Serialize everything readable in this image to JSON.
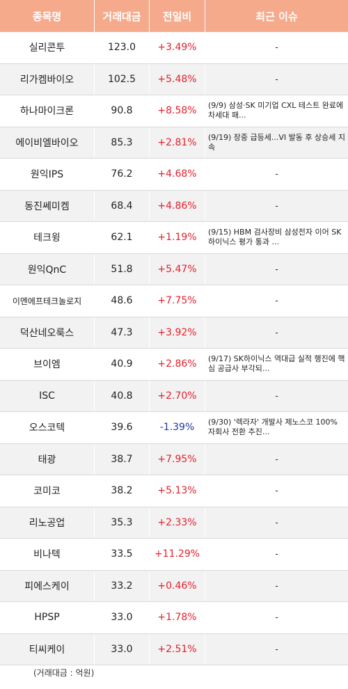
{
  "header": {
    "col_name": "종목명",
    "col_volume": "거래대금",
    "col_change": "전일비",
    "col_issue": "최근 이슈"
  },
  "rows": [
    {
      "name": "실리콘투",
      "volume": "123.0",
      "change": "+3.49%",
      "issue": "-"
    },
    {
      "name": "리가켐바이오",
      "volume": "102.5",
      "change": "+5.48%",
      "issue": "-"
    },
    {
      "name": "하나마이크론",
      "volume": "90.8",
      "change": "+8.58%",
      "issue": "(9/9) 삼성·SK 미기업 CXL 테스트 완료에 차세대 패..."
    },
    {
      "name": "에이비엘바이오",
      "volume": "85.3",
      "change": "+2.81%",
      "issue": "(9/19) 장중 급등세...VI 발동 후 상승세 지속"
    },
    {
      "name": "원익IPS",
      "volume": "76.2",
      "change": "+4.68%",
      "issue": "-"
    },
    {
      "name": "동진쎄미켐",
      "volume": "68.4",
      "change": "+4.86%",
      "issue": "-"
    },
    {
      "name": "테크윙",
      "volume": "62.1",
      "change": "+1.19%",
      "issue": "(9/15) HBM 검사장비 삼성전자 이어 SK하이닉스 평가 통과 ..."
    },
    {
      "name": "원익QnC",
      "volume": "51.8",
      "change": "+5.47%",
      "issue": "-"
    },
    {
      "name": "이엔에프테크놀로지",
      "volume": "48.6",
      "change": "+7.75%",
      "issue": "-"
    },
    {
      "name": "덕산네오룩스",
      "volume": "47.3",
      "change": "+3.92%",
      "issue": "-"
    },
    {
      "name": "브이엠",
      "volume": "40.9",
      "change": "+2.86%",
      "issue": "(9/17) SK하이닉스 역대급 실적 행진에 핵심 공급사 부각되..."
    },
    {
      "name": "ISC",
      "volume": "40.8",
      "change": "+2.70%",
      "issue": "-"
    },
    {
      "name": "오스코텍",
      "volume": "39.6",
      "change": "-1.39%",
      "issue": "(9/30) '렉라자' 개발사 제노스코 100% 자회사 전환 추진..."
    },
    {
      "name": "태광",
      "volume": "38.7",
      "change": "+7.95%",
      "issue": "-"
    },
    {
      "name": "코미코",
      "volume": "38.2",
      "change": "+5.13%",
      "issue": "-"
    },
    {
      "name": "리노공업",
      "volume": "35.3",
      "change": "+2.33%",
      "issue": "-"
    },
    {
      "name": "비나텍",
      "volume": "33.5",
      "change": "+11.29%",
      "issue": "-"
    },
    {
      "name": "피에스케이",
      "volume": "33.2",
      "change": "+0.46%",
      "issue": "-"
    },
    {
      "name": "HPSP",
      "volume": "33.0",
      "change": "+1.78%",
      "issue": "-"
    },
    {
      "name": "티씨케이",
      "volume": "33.0",
      "change": "+2.51%",
      "issue": "-"
    }
  ],
  "footnote": "(거래대금 : 억원)",
  "colors": {
    "header_bg": "#f6aa8c",
    "positive": "#e5202e",
    "negative": "#2233aa"
  }
}
